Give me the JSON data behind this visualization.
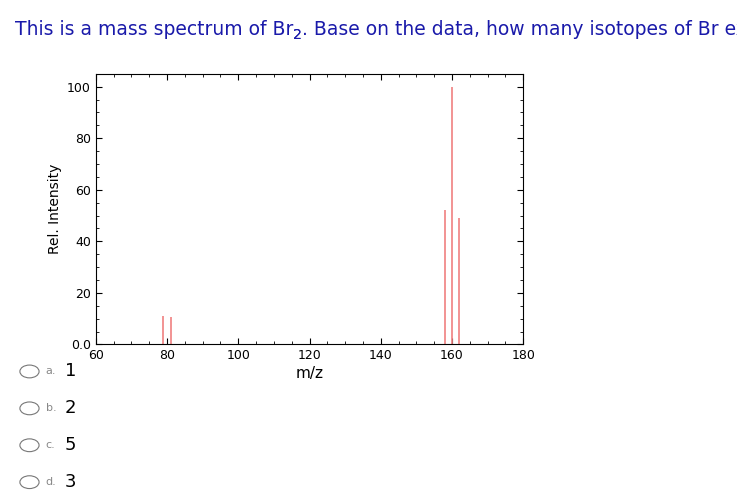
{
  "peaks": [
    {
      "mz": 79,
      "intensity": 11.0
    },
    {
      "mz": 81,
      "intensity": 10.5
    },
    {
      "mz": 158,
      "intensity": 52.0
    },
    {
      "mz": 160,
      "intensity": 100.0
    },
    {
      "mz": 162,
      "intensity": 49.0
    }
  ],
  "peak_color": "#f08080",
  "xlim": [
    60,
    180
  ],
  "ylim": [
    0,
    105
  ],
  "xticks": [
    60,
    80,
    100,
    120,
    140,
    160,
    180
  ],
  "yticks": [
    0.0,
    20,
    40,
    60,
    80,
    100
  ],
  "xlabel": "m/z",
  "ylabel": "Rel. Intensity",
  "title_color": "#1a1aaa",
  "choices": [
    {
      "label": "a.",
      "value": "1"
    },
    {
      "label": "b.",
      "value": "2"
    },
    {
      "label": "c.",
      "value": "5"
    },
    {
      "label": "d.",
      "value": "3"
    }
  ],
  "bg_color": "#ffffff",
  "peak_linewidth": 1.2,
  "fig_width": 7.37,
  "fig_height": 4.92
}
